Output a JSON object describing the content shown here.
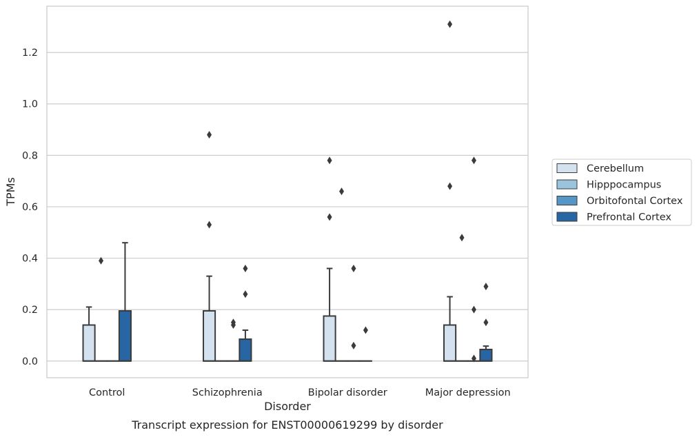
{
  "chart_data": {
    "type": "box",
    "caption": "Transcript expression for ENST00000619299 by disorder",
    "xlabel": "Disorder",
    "ylabel": "TPMs",
    "ylim": [
      -0.065,
      1.38
    ],
    "yticks": [
      "0.0",
      "0.2",
      "0.4",
      "0.6",
      "0.8",
      "1.0",
      "1.2"
    ],
    "grid": true,
    "legend_position": "right",
    "categories": [
      "Control",
      "Schizophrenia",
      "Bipolar disorder",
      "Major depression"
    ],
    "series": [
      {
        "name": "Cerebellum",
        "color": "#d4e2f0",
        "boxes": [
          {
            "q1": 0.0,
            "median": 0.0,
            "q3": 0.14,
            "whisker_low": 0.0,
            "whisker_high": 0.21,
            "outliers": []
          },
          {
            "q1": 0.0,
            "median": 0.0,
            "q3": 0.195,
            "whisker_low": 0.0,
            "whisker_high": 0.33,
            "outliers": [
              0.53,
              0.88
            ]
          },
          {
            "q1": 0.0,
            "median": 0.0,
            "q3": 0.175,
            "whisker_low": 0.0,
            "whisker_high": 0.36,
            "outliers": [
              0.56,
              0.78
            ]
          },
          {
            "q1": 0.0,
            "median": 0.0,
            "q3": 0.14,
            "whisker_low": 0.0,
            "whisker_high": 0.25,
            "outliers": [
              0.68,
              1.31
            ]
          }
        ]
      },
      {
        "name": "Hipppocampus",
        "color": "#9ac3dd",
        "boxes": [
          {
            "q1": 0.0,
            "median": 0.0,
            "q3": 0.0,
            "whisker_low": 0.0,
            "whisker_high": 0.0,
            "outliers": [
              0.39
            ]
          },
          {
            "q1": 0.0,
            "median": 0.0,
            "q3": 0.0,
            "whisker_low": 0.0,
            "whisker_high": 0.0,
            "outliers": []
          },
          {
            "q1": 0.0,
            "median": 0.0,
            "q3": 0.0,
            "whisker_low": 0.0,
            "whisker_high": 0.0,
            "outliers": [
              0.66
            ]
          },
          {
            "q1": 0.0,
            "median": 0.0,
            "q3": 0.0,
            "whisker_low": 0.0,
            "whisker_high": 0.0,
            "outliers": [
              0.48
            ]
          }
        ]
      },
      {
        "name": "Orbitofontal Cortex",
        "color": "#5596c6",
        "boxes": [
          {
            "q1": 0.0,
            "median": 0.0,
            "q3": 0.0,
            "whisker_low": 0.0,
            "whisker_high": 0.0,
            "outliers": []
          },
          {
            "q1": 0.0,
            "median": 0.0,
            "q3": 0.0,
            "whisker_low": 0.0,
            "whisker_high": 0.0,
            "outliers": [
              0.14,
              0.15
            ]
          },
          {
            "q1": 0.0,
            "median": 0.0,
            "q3": 0.0,
            "whisker_low": 0.0,
            "whisker_high": 0.0,
            "outliers": [
              0.06,
              0.36
            ]
          },
          {
            "q1": 0.0,
            "median": 0.0,
            "q3": 0.0,
            "whisker_low": 0.0,
            "whisker_high": 0.0,
            "outliers": [
              0.01,
              0.2,
              0.78
            ]
          }
        ]
      },
      {
        "name": "Prefrontal Cortex",
        "color": "#2865a3",
        "boxes": [
          {
            "q1": 0.0,
            "median": 0.0,
            "q3": 0.195,
            "whisker_low": 0.0,
            "whisker_high": 0.46,
            "outliers": []
          },
          {
            "q1": 0.0,
            "median": 0.0,
            "q3": 0.085,
            "whisker_low": 0.0,
            "whisker_high": 0.12,
            "outliers": [
              0.26,
              0.36
            ]
          },
          {
            "q1": 0.0,
            "median": 0.0,
            "q3": 0.0,
            "whisker_low": 0.0,
            "whisker_high": 0.0,
            "outliers": [
              0.12
            ]
          },
          {
            "q1": 0.0,
            "median": 0.0,
            "q3": 0.045,
            "whisker_low": 0.0,
            "whisker_high": 0.058,
            "outliers": [
              0.15,
              0.29
            ]
          }
        ]
      }
    ]
  }
}
